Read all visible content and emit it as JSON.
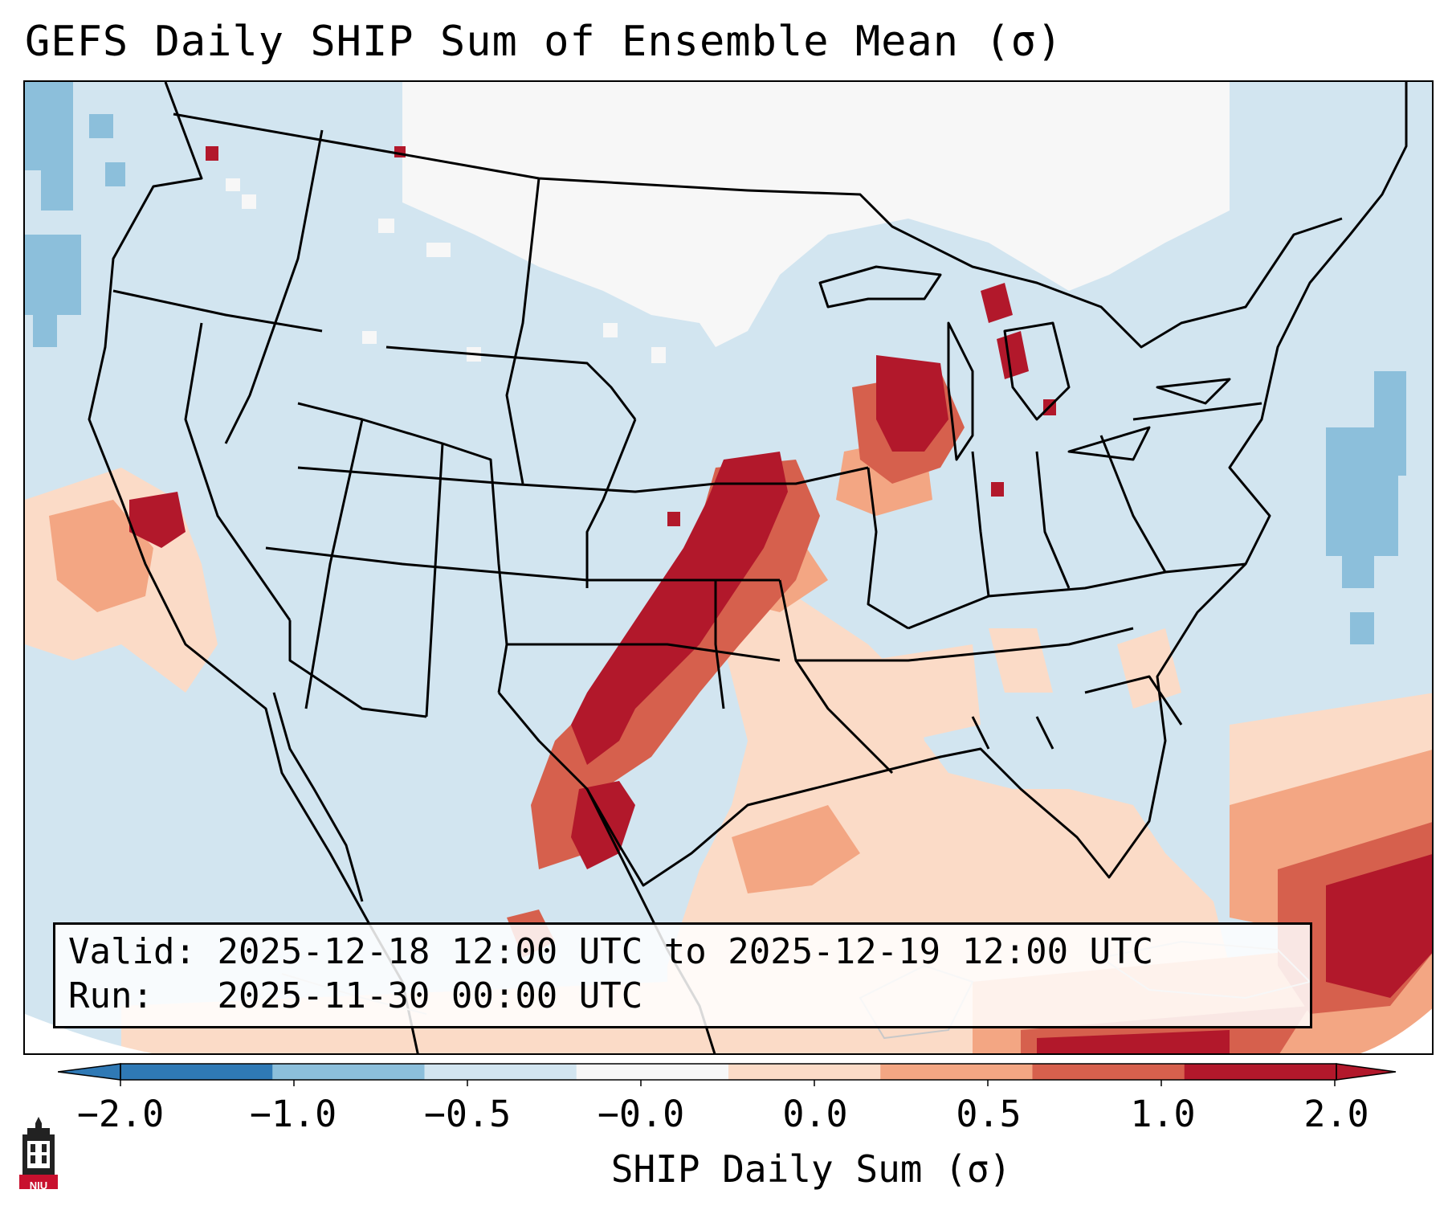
{
  "title": "GEFS Daily SHIP Sum of Ensemble Mean (σ)",
  "info": {
    "valid_label": "Valid:",
    "valid_value": "2025-12-18 12:00 UTC to 2025-12-19 12:00 UTC",
    "run_label": "Run:",
    "run_value": "2025-11-30 00:00 UTC"
  },
  "colorbar": {
    "label": "SHIP Daily Sum (σ)",
    "ticks": [
      "−2.0",
      "−1.0",
      "−0.5",
      "−0.0",
      "0.0",
      "0.5",
      "1.0",
      "2.0"
    ],
    "colors": [
      "#2f79b5",
      "#8cbfdb",
      "#d2e5f0",
      "#f7f7f7",
      "#fbdbc7",
      "#f3a683",
      "#d6604d",
      "#b2182b"
    ],
    "extend": "both"
  },
  "map": {
    "region": "CONUS",
    "background_color": "#d2e5f0",
    "notable_fields": [
      {
        "level": "2.0",
        "color": "#b2182b"
      },
      {
        "level": "1.0",
        "color": "#d6604d"
      },
      {
        "level": "0.5",
        "color": "#f3a683"
      },
      {
        "level": "0.0",
        "color": "#fbdbc7"
      },
      {
        "level": "-0.0",
        "color": "#f7f7f7"
      },
      {
        "level": "-1.0",
        "color": "#8cbfdb"
      }
    ]
  },
  "logo": {
    "text": "NIU",
    "icon": "university-tower-icon"
  }
}
